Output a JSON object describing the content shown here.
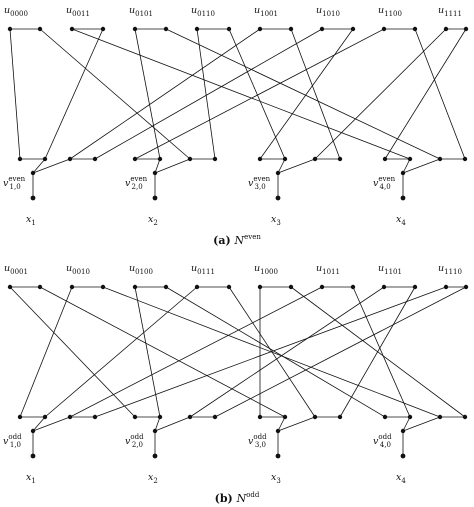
{
  "panels": [
    {
      "id": "even",
      "top_labels": [
        {
          "base": "u",
          "sub": "0000"
        },
        {
          "base": "u",
          "sub": "0011"
        },
        {
          "base": "u",
          "sub": "0101"
        },
        {
          "base": "u",
          "sub": "0110"
        },
        {
          "base": "u",
          "sub": "1001"
        },
        {
          "base": "u",
          "sub": "1010"
        },
        {
          "base": "u",
          "sub": "1100"
        },
        {
          "base": "u",
          "sub": "1111"
        }
      ],
      "mid_labels": [
        {
          "base": "v",
          "sub": "1,0",
          "sup": "even"
        },
        {
          "base": "v",
          "sub": "2,0",
          "sup": "even"
        },
        {
          "base": "v",
          "sub": "3,0",
          "sup": "even"
        },
        {
          "base": "v",
          "sub": "4,0",
          "sup": "even"
        }
      ],
      "bottom_labels": [
        {
          "base": "x",
          "sub": "1"
        },
        {
          "base": "x",
          "sub": "2"
        },
        {
          "base": "x",
          "sub": "3"
        },
        {
          "base": "x",
          "sub": "4"
        }
      ],
      "caption": {
        "tag": "(a)",
        "base": "N",
        "sup": "even"
      }
    },
    {
      "id": "odd",
      "top_labels": [
        {
          "base": "u",
          "sub": "0001"
        },
        {
          "base": "u",
          "sub": "0010"
        },
        {
          "base": "u",
          "sub": "0100"
        },
        {
          "base": "u",
          "sub": "0111"
        },
        {
          "base": "u",
          "sub": "1000"
        },
        {
          "base": "u",
          "sub": "1011"
        },
        {
          "base": "u",
          "sub": "1101"
        },
        {
          "base": "u",
          "sub": "1110"
        }
      ],
      "mid_labels": [
        {
          "base": "v",
          "sub": "1,0",
          "sup": "odd"
        },
        {
          "base": "v",
          "sub": "2,0",
          "sup": "odd"
        },
        {
          "base": "v",
          "sub": "3,0",
          "sup": "odd"
        },
        {
          "base": "v",
          "sub": "4,0",
          "sup": "odd"
        }
      ],
      "bottom_labels": [
        {
          "base": "x",
          "sub": "1"
        },
        {
          "base": "x",
          "sub": "2"
        },
        {
          "base": "x",
          "sub": "3"
        },
        {
          "base": "x",
          "sub": "4"
        }
      ],
      "caption": {
        "tag": "(b)",
        "base": "N",
        "sup": "odd"
      }
    }
  ]
}
